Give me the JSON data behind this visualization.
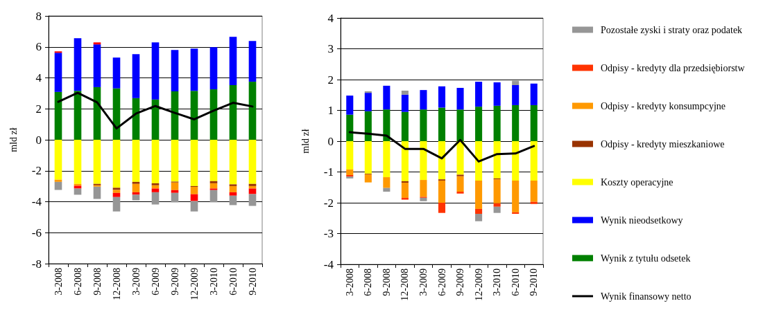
{
  "chart_data": [
    {
      "type": "bar",
      "stacked": true,
      "ylabel": "mld zł",
      "categories": [
        "3-2008",
        "6-2008",
        "9-2008",
        "12-2008",
        "3-2009",
        "6-2009",
        "9-2009",
        "12-2009",
        "3-2010",
        "6-2010",
        "9-2010"
      ],
      "ylim": [
        -8,
        8
      ],
      "yticks": [
        -8,
        -6,
        -4,
        -2,
        0,
        2,
        4,
        6,
        8
      ],
      "grid": "y",
      "legend": false,
      "marker": "none",
      "series": [
        {
          "color": "#008000",
          "values": [
            3.09,
            3.16,
            3.4,
            3.32,
            2.69,
            2.6,
            3.13,
            3.16,
            3.26,
            3.53,
            3.75
          ]
        },
        {
          "color": "#0000ff",
          "values": [
            2.53,
            3.4,
            2.76,
            1.99,
            2.84,
            3.69,
            2.67,
            2.73,
            2.72,
            3.12,
            2.63
          ]
        },
        {
          "color": "#ffff00",
          "values": [
            -2.58,
            -2.85,
            -2.85,
            -3.1,
            -2.72,
            -2.81,
            -2.7,
            -2.99,
            -2.67,
            -2.88,
            -2.85
          ]
        },
        {
          "color": "#993300",
          "values": [
            null,
            null,
            -0.09,
            -0.14,
            -0.13,
            -0.13,
            -0.06,
            -0.05,
            -0.14,
            -0.11,
            -0.14
          ]
        },
        {
          "color": "#ff9900",
          "values": [
            -0.14,
            -0.12,
            -0.09,
            -0.19,
            -0.54,
            -0.21,
            -0.49,
            -0.48,
            -0.34,
            -0.4,
            -0.16
          ]
        },
        {
          "color": "#ff0000",
          "values": [
            0.09,
            -0.18,
            0.13,
            -0.27,
            -0.16,
            -0.24,
            -0.18,
            -0.44,
            -0.1,
            -0.22,
            -0.36
          ]
        },
        {
          "color": "#969696",
          "values": [
            -0.52,
            -0.4,
            -0.79,
            -0.93,
            -0.36,
            -0.79,
            -0.61,
            -0.67,
            -0.79,
            -0.61,
            -0.76
          ]
        },
        {
          "type": "line",
          "color": "#000000",
          "values": [
            2.45,
            3.03,
            2.42,
            0.73,
            1.69,
            2.18,
            1.74,
            1.32,
            1.88,
            2.39,
            2.15
          ]
        }
      ]
    },
    {
      "type": "bar",
      "stacked": true,
      "ylabel": "mld zł",
      "categories": [
        "3-2008",
        "6-2008",
        "9-2008",
        "12-2008",
        "3-2009",
        "6-2009",
        "9-2009",
        "12-2009",
        "3-2010",
        "6-2010",
        "9-2010"
      ],
      "ylim": [
        -4,
        4
      ],
      "yticks": [
        -4,
        -3,
        -2,
        -1,
        0,
        1,
        2,
        3,
        4
      ],
      "grid": "y",
      "legend": "right",
      "marker": "none",
      "series": [
        {
          "name": "Wynik z tytułu odsetek",
          "color": "#008000",
          "values": [
            0.86,
            0.97,
            1.03,
            0.95,
            1.03,
            1.09,
            1.03,
            1.12,
            1.15,
            1.17,
            1.17
          ]
        },
        {
          "name": "Wynik nieodsetkowy",
          "color": "#0000ff",
          "values": [
            0.62,
            0.6,
            0.77,
            0.56,
            0.63,
            0.69,
            0.7,
            0.81,
            0.76,
            0.65,
            0.7
          ]
        },
        {
          "name": "Koszty operacyjne",
          "color": "#ffff00",
          "values": [
            -0.92,
            -1.06,
            -1.17,
            -1.3,
            -1.26,
            -1.24,
            -1.09,
            -1.28,
            -1.21,
            -1.28,
            -1.28
          ]
        },
        {
          "name": "Odpisy - kredyty mieszkaniowe",
          "color": "#993300",
          "values": [
            null,
            -0.02,
            null,
            -0.05,
            null,
            -0.04,
            -0.05,
            null,
            -0.03,
            null,
            null
          ]
        },
        {
          "name": "Odpisy - kredyty konsumpcyjne",
          "color": "#ff9900",
          "values": [
            -0.18,
            -0.26,
            -0.35,
            -0.49,
            -0.55,
            -0.72,
            -0.5,
            -0.92,
            -0.78,
            -1.03,
            -0.69
          ]
        },
        {
          "name": "Odpisy - kredyty dla przedsiębiorstw",
          "color": "#ff3300",
          "values": [
            -0.05,
            null,
            null,
            -0.06,
            -0.03,
            -0.33,
            -0.06,
            -0.16,
            -0.11,
            -0.05,
            -0.07
          ]
        },
        {
          "name": "Pozostałe zyski i straty oraz podatek",
          "color": "#969696",
          "values": [
            -0.06,
            0.05,
            -0.12,
            0.13,
            -0.11,
            null,
            null,
            -0.24,
            -0.2,
            0.14,
            null
          ]
        },
        {
          "name": "Wynik finansowy netto",
          "type": "line",
          "color": "#000000",
          "values": [
            0.29,
            0.24,
            0.18,
            -0.25,
            -0.25,
            -0.56,
            0.04,
            -0.66,
            -0.42,
            -0.4,
            -0.16
          ]
        }
      ]
    }
  ]
}
